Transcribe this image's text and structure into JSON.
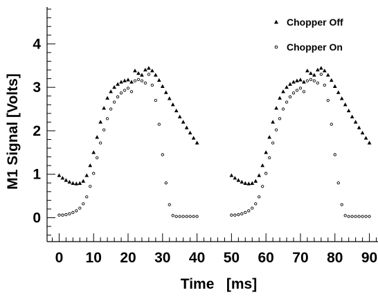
{
  "chart_data": {
    "type": "scatter",
    "title": "",
    "xlabel": "Time   [ms]",
    "ylabel": "M1 Signal [Volts]",
    "xlim": [
      -3.5,
      92.5
    ],
    "ylim": [
      -0.55,
      4.85
    ],
    "x_ticks": [
      0,
      10,
      20,
      30,
      40,
      50,
      60,
      70,
      80,
      90
    ],
    "x_tick_labels": [
      "0",
      "10",
      "20",
      "30",
      "40",
      "50",
      "60",
      "70",
      "80",
      "90"
    ],
    "y_ticks": [
      0,
      1,
      2,
      3,
      4
    ],
    "y_tick_labels": [
      "0",
      "1",
      "2",
      "3",
      "4"
    ],
    "grid": false,
    "legend_position": "top-right",
    "series": [
      {
        "name": "Chopper Off",
        "marker": "triangle",
        "color": "#000000",
        "x": [
          0,
          1,
          2,
          3,
          4,
          5,
          6,
          7,
          8,
          9,
          10,
          11,
          12,
          13,
          14,
          15,
          16,
          17,
          18,
          19,
          20,
          21,
          22,
          23,
          24,
          25,
          26,
          27,
          28,
          29,
          30,
          31,
          32,
          33,
          34,
          35,
          36,
          37,
          38,
          39,
          40,
          50,
          51,
          52,
          53,
          54,
          55,
          56,
          57,
          58,
          59,
          60,
          61,
          62,
          63,
          64,
          65,
          66,
          67,
          68,
          69,
          70,
          71,
          72,
          73,
          74,
          75,
          76,
          77,
          78,
          79,
          80,
          81,
          82,
          83,
          84,
          85,
          86,
          87,
          88,
          89,
          90
        ],
        "y": [
          0.97,
          0.91,
          0.86,
          0.82,
          0.79,
          0.78,
          0.79,
          0.84,
          0.97,
          1.2,
          1.5,
          1.85,
          2.2,
          2.52,
          2.75,
          2.9,
          3.0,
          3.07,
          3.12,
          3.15,
          3.17,
          3.12,
          3.38,
          3.32,
          3.28,
          3.4,
          3.44,
          3.38,
          3.28,
          3.16,
          3.02,
          2.88,
          2.74,
          2.6,
          2.46,
          2.32,
          2.2,
          2.07,
          1.95,
          1.83,
          1.72,
          0.97,
          0.91,
          0.86,
          0.82,
          0.79,
          0.78,
          0.79,
          0.84,
          0.97,
          1.2,
          1.5,
          1.85,
          2.2,
          2.52,
          2.75,
          2.9,
          3.0,
          3.07,
          3.12,
          3.15,
          3.17,
          3.12,
          3.38,
          3.32,
          3.28,
          3.4,
          3.44,
          3.38,
          3.28,
          3.16,
          3.02,
          2.88,
          2.74,
          2.6,
          2.46,
          2.32,
          2.2,
          2.07,
          1.95,
          1.83,
          1.72
        ]
      },
      {
        "name": "Chopper On",
        "marker": "circle",
        "color": "#000000",
        "x": [
          0,
          1,
          2,
          3,
          4,
          5,
          6,
          7,
          8,
          9,
          10,
          11,
          12,
          13,
          14,
          15,
          16,
          17,
          18,
          19,
          20,
          21,
          22,
          23,
          24,
          25,
          26,
          27,
          28,
          29,
          30,
          31,
          32,
          33,
          34,
          35,
          36,
          37,
          38,
          39,
          40,
          50,
          51,
          52,
          53,
          54,
          55,
          56,
          57,
          58,
          59,
          60,
          61,
          62,
          63,
          64,
          65,
          66,
          67,
          68,
          69,
          70,
          71,
          72,
          73,
          74,
          75,
          76,
          77,
          78,
          79,
          80,
          81,
          82,
          83,
          84,
          85,
          86,
          87,
          88,
          89,
          90
        ],
        "y": [
          0.06,
          0.06,
          0.07,
          0.09,
          0.12,
          0.16,
          0.22,
          0.32,
          0.48,
          0.72,
          1.02,
          1.38,
          1.72,
          2.02,
          2.28,
          2.5,
          2.66,
          2.78,
          2.87,
          2.93,
          2.98,
          2.9,
          3.15,
          3.18,
          3.15,
          3.1,
          3.3,
          3.05,
          2.7,
          2.15,
          1.45,
          0.8,
          0.3,
          0.05,
          0.03,
          0.03,
          0.03,
          0.03,
          0.03,
          0.03,
          0.03,
          0.06,
          0.06,
          0.07,
          0.09,
          0.12,
          0.16,
          0.22,
          0.32,
          0.48,
          0.72,
          1.02,
          1.38,
          1.72,
          2.02,
          2.28,
          2.5,
          2.66,
          2.78,
          2.87,
          2.93,
          2.98,
          2.9,
          3.15,
          3.18,
          3.15,
          3.1,
          3.3,
          3.05,
          2.7,
          2.15,
          1.45,
          0.8,
          0.3,
          0.05,
          0.03,
          0.03,
          0.03,
          0.03,
          0.03,
          0.03,
          0.03
        ]
      }
    ]
  }
}
